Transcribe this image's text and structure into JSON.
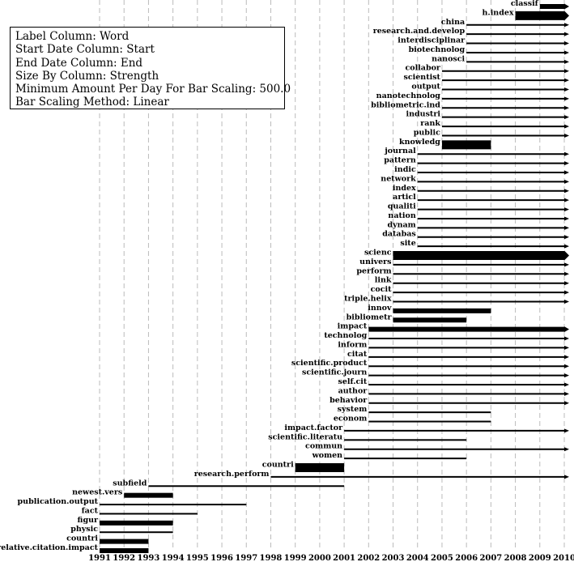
{
  "chart_data": {
    "type": "bar",
    "subtype": "horizontal-timeline",
    "x_axis": {
      "ticks": [
        1991,
        1992,
        1993,
        1994,
        1995,
        1996,
        1997,
        1998,
        1999,
        2000,
        2001,
        2002,
        2003,
        2004,
        2005,
        2006,
        2007,
        2008,
        2009,
        2010
      ],
      "range": [
        1991,
        2010
      ],
      "grid": "dashed-vertical"
    },
    "legend": {
      "placement": "top-left",
      "lines": [
        "Label Column: Word",
        "Start Date Column: Start",
        "End Date Column: End",
        "Size By Column: Strength",
        "Minimum Amount Per Day For Bar Scaling: 500.0",
        "Bar Scaling Method: Linear"
      ]
    },
    "colors": {
      "bar": "#000000",
      "grid": "#bbbbbb"
    },
    "bars": [
      {
        "label": "classif",
        "start": 2009.0,
        "end": 2010.0,
        "weight": 2
      },
      {
        "label": "h.index",
        "start": 2008.0,
        "end": 2010.0,
        "weight": 3
      },
      {
        "label": "china",
        "start": 2006.0,
        "end": 2010.0,
        "weight": 1
      },
      {
        "label": "research.and.develop",
        "start": 2006.0,
        "end": 2010.0,
        "weight": 1
      },
      {
        "label": "interdisciplinar",
        "start": 2006.0,
        "end": 2010.0,
        "weight": 1
      },
      {
        "label": "biotechnolog",
        "start": 2006.0,
        "end": 2010.0,
        "weight": 1
      },
      {
        "label": "nanosci",
        "start": 2006.0,
        "end": 2010.0,
        "weight": 1
      },
      {
        "label": "collabor",
        "start": 2005.0,
        "end": 2010.0,
        "weight": 1
      },
      {
        "label": "scientist",
        "start": 2005.0,
        "end": 2010.0,
        "weight": 1
      },
      {
        "label": "output",
        "start": 2005.0,
        "end": 2010.0,
        "weight": 1
      },
      {
        "label": "nanotechnolog",
        "start": 2005.0,
        "end": 2010.0,
        "weight": 1
      },
      {
        "label": "bibliometric.ind",
        "start": 2005.0,
        "end": 2010.0,
        "weight": 1
      },
      {
        "label": "industri",
        "start": 2005.0,
        "end": 2010.0,
        "weight": 1
      },
      {
        "label": "rank",
        "start": 2005.0,
        "end": 2010.0,
        "weight": 1
      },
      {
        "label": "public",
        "start": 2005.0,
        "end": 2010.0,
        "weight": 1
      },
      {
        "label": "knowledg",
        "start": 2005.0,
        "end": 2007.0,
        "weight": 3
      },
      {
        "label": "journal",
        "start": 2004.0,
        "end": 2010.0,
        "weight": 1
      },
      {
        "label": "pattern",
        "start": 2004.0,
        "end": 2010.0,
        "weight": 1
      },
      {
        "label": "indic",
        "start": 2004.0,
        "end": 2010.0,
        "weight": 1
      },
      {
        "label": "network",
        "start": 2004.0,
        "end": 2010.0,
        "weight": 1
      },
      {
        "label": "index",
        "start": 2004.0,
        "end": 2010.0,
        "weight": 1
      },
      {
        "label": "articl",
        "start": 2004.0,
        "end": 2010.0,
        "weight": 1
      },
      {
        "label": "qualiti",
        "start": 2004.0,
        "end": 2010.0,
        "weight": 1
      },
      {
        "label": "nation",
        "start": 2004.0,
        "end": 2010.0,
        "weight": 1
      },
      {
        "label": "dynam",
        "start": 2004.0,
        "end": 2010.0,
        "weight": 1
      },
      {
        "label": "databas",
        "start": 2004.0,
        "end": 2010.0,
        "weight": 1
      },
      {
        "label": "site",
        "start": 2004.0,
        "end": 2010.0,
        "weight": 1
      },
      {
        "label": "scienc",
        "start": 2003.0,
        "end": 2010.0,
        "weight": 3
      },
      {
        "label": "univers",
        "start": 2003.0,
        "end": 2010.0,
        "weight": 1
      },
      {
        "label": "perform",
        "start": 2003.0,
        "end": 2010.0,
        "weight": 1
      },
      {
        "label": "link",
        "start": 2003.0,
        "end": 2010.0,
        "weight": 1
      },
      {
        "label": "cocit",
        "start": 2003.0,
        "end": 2010.0,
        "weight": 1
      },
      {
        "label": "triple.helix",
        "start": 2003.0,
        "end": 2010.0,
        "weight": 1
      },
      {
        "label": "innov",
        "start": 2003.0,
        "end": 2007.0,
        "weight": 2
      },
      {
        "label": "bibliometr",
        "start": 2003.0,
        "end": 2006.0,
        "weight": 2
      },
      {
        "label": "impact",
        "start": 2002.0,
        "end": 2010.0,
        "weight": 2
      },
      {
        "label": "technolog",
        "start": 2002.0,
        "end": 2010.0,
        "weight": 1
      },
      {
        "label": "inform",
        "start": 2002.0,
        "end": 2010.0,
        "weight": 1
      },
      {
        "label": "citat",
        "start": 2002.0,
        "end": 2010.0,
        "weight": 1
      },
      {
        "label": "scientific.product",
        "start": 2002.0,
        "end": 2010.0,
        "weight": 1
      },
      {
        "label": "scientific.journ",
        "start": 2002.0,
        "end": 2010.0,
        "weight": 1
      },
      {
        "label": "self.cit",
        "start": 2002.0,
        "end": 2010.0,
        "weight": 1
      },
      {
        "label": "author",
        "start": 2002.0,
        "end": 2010.0,
        "weight": 1
      },
      {
        "label": "behavior",
        "start": 2002.0,
        "end": 2010.0,
        "weight": 1
      },
      {
        "label": "system",
        "start": 2002.0,
        "end": 2007.0,
        "weight": 1
      },
      {
        "label": "econom",
        "start": 2002.0,
        "end": 2007.0,
        "weight": 1
      },
      {
        "label": "impact.factor",
        "start": 2001.0,
        "end": 2010.0,
        "weight": 1
      },
      {
        "label": "scientific.literatu",
        "start": 2001.0,
        "end": 2006.0,
        "weight": 1
      },
      {
        "label": "commun",
        "start": 2001.0,
        "end": 2010.0,
        "weight": 1
      },
      {
        "label": "women",
        "start": 2001.0,
        "end": 2006.0,
        "weight": 1
      },
      {
        "label": "countri",
        "start": 1999.0,
        "end": 2001.0,
        "weight": 3
      },
      {
        "label": "research.perform",
        "start": 1998.0,
        "end": 2010.0,
        "weight": 1
      },
      {
        "label": "subfield",
        "start": 1993.0,
        "end": 2001.0,
        "weight": 1
      },
      {
        "label": "newest.vers",
        "start": 1992.0,
        "end": 1994.0,
        "weight": 2
      },
      {
        "label": "publication.output",
        "start": 1991.0,
        "end": 1997.0,
        "weight": 1
      },
      {
        "label": "fact",
        "start": 1991.0,
        "end": 1995.0,
        "weight": 1
      },
      {
        "label": "figur",
        "start": 1991.0,
        "end": 1994.0,
        "weight": 2
      },
      {
        "label": "physic",
        "start": 1991.0,
        "end": 1994.0,
        "weight": 1
      },
      {
        "label": "countri",
        "start": 1991.0,
        "end": 1993.0,
        "weight": 2
      },
      {
        "label": "relative.citation.impact",
        "start": 1991.0,
        "end": 1993.0,
        "weight": 2
      }
    ]
  }
}
